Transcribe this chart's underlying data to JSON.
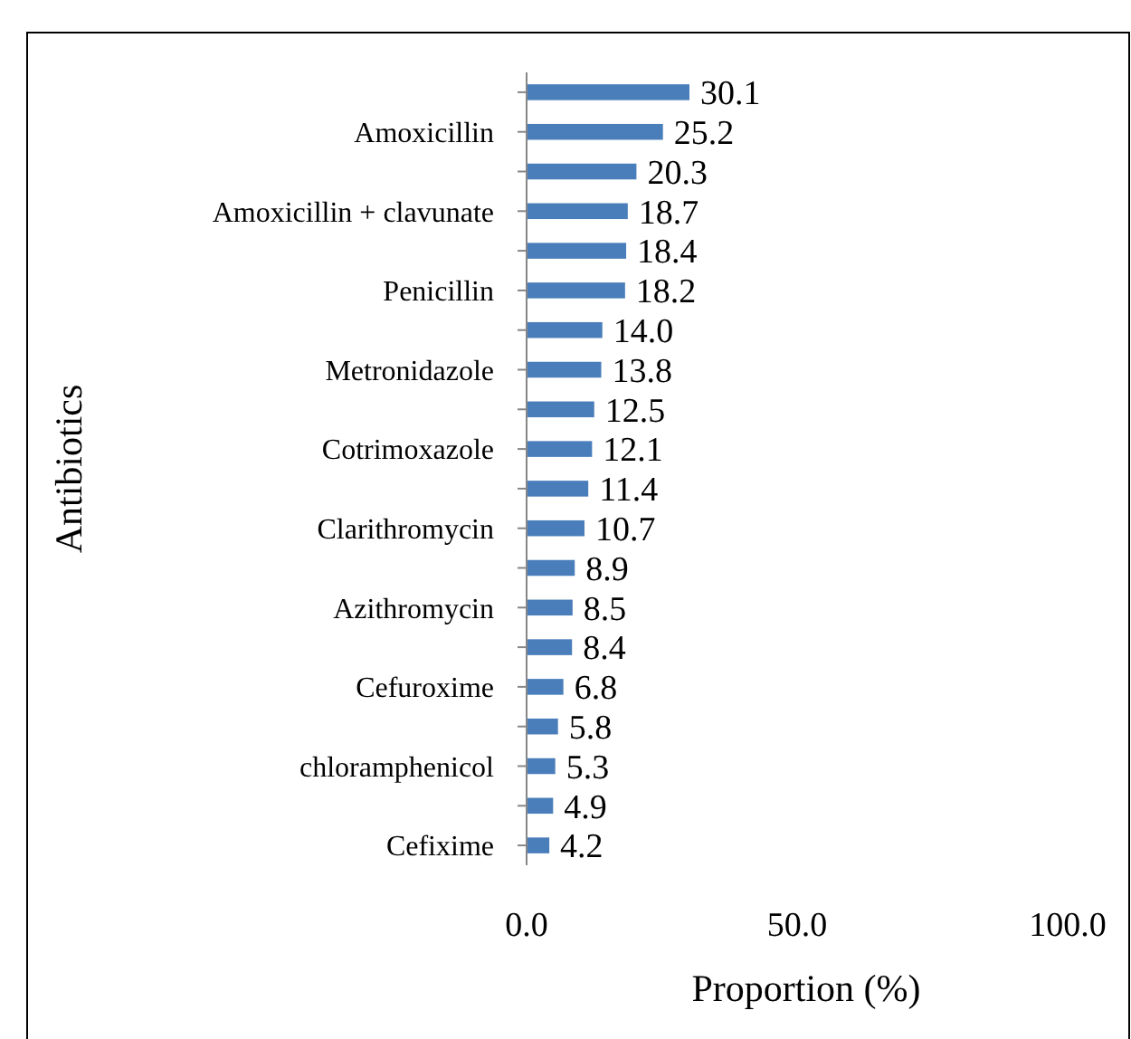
{
  "chart_data": {
    "type": "bar",
    "orientation": "horizontal",
    "xlabel": "Proportion (%)",
    "ylabel": "Antibiotics",
    "categories": [
      null,
      "Amoxicillin",
      null,
      "Amoxicillin + clavunate",
      null,
      "Penicillin",
      null,
      "Metronidazole",
      null,
      "Cotrimoxazole",
      null,
      "Clarithromycin",
      null,
      "Azithromycin",
      null,
      "Cefuroxime",
      null,
      "chloramphenicol",
      null,
      "Cefixime"
    ],
    "values": [
      30.1,
      25.2,
      20.3,
      18.7,
      18.4,
      18.2,
      14.0,
      13.8,
      12.5,
      12.1,
      11.4,
      10.7,
      8.9,
      8.5,
      8.4,
      6.8,
      5.8,
      5.3,
      4.9,
      4.2
    ],
    "value_labels": [
      "30.1",
      "25.2",
      "20.3",
      "18.7",
      "18.4",
      "18.2",
      "14.0",
      "13.8",
      "12.5",
      "12.1",
      "11.4",
      "10.7",
      "8.9",
      "8.5",
      "8.4",
      "6.8",
      "5.8",
      "5.3",
      "4.9",
      "4.2"
    ],
    "color": "#4a7ebb",
    "xlim": [
      0,
      100
    ],
    "xticks": [
      {
        "value": 0,
        "label": "0.0"
      },
      {
        "value": 50,
        "label": "50.0"
      },
      {
        "value": 100,
        "label": "100.0"
      }
    ],
    "grid": false
  }
}
